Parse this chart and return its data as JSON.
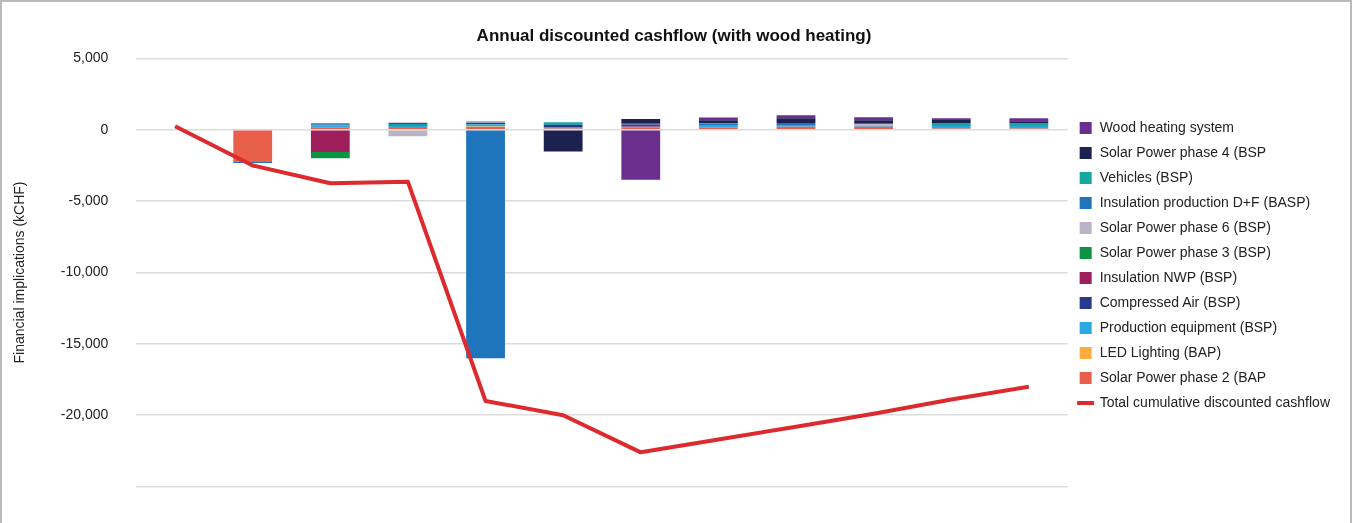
{
  "chart_data": {
    "type": "bar",
    "stacked": true,
    "title": "Annual discounted cashflow (with wood heating)",
    "ylabel": "Financial implications (kCHF)",
    "categories": [
      null,
      null,
      null,
      null,
      null,
      null,
      null,
      null,
      null,
      null,
      null,
      null
    ],
    "ylim": [
      -25000,
      5000
    ],
    "yticks": [
      {
        "value": -25000,
        "label": null
      },
      {
        "value": -20000,
        "label": "-20,000"
      },
      {
        "value": -15000,
        "label": "-15,000"
      },
      {
        "value": -10000,
        "label": "-10,000"
      },
      {
        "value": -5000,
        "label": "-5,000"
      },
      0,
      {
        "value": 5000,
        "label": "5,000"
      }
    ],
    "grid": "y",
    "legend": "right",
    "tick_labels": "y",
    "series": [
      {
        "name": "Solar Power phase 2 (BAP",
        "color": "#e8604a",
        "values": [
          null,
          -2200,
          150,
          130,
          200,
          90,
          150,
          150,
          220,
          220,
          90,
          90
        ]
      },
      {
        "name": "LED Lighting (BAP)",
        "color": "#fbad3f",
        "values": [
          null,
          null,
          null,
          null,
          30,
          null,
          null,
          null,
          null,
          null,
          null,
          null
        ]
      },
      {
        "name": "Production equipment (BSP)",
        "color": "#29a9e0",
        "values": [
          null,
          null,
          150,
          150,
          150,
          110,
          60,
          130,
          60,
          60,
          180,
          180
        ]
      },
      {
        "name": "Compressed Air (BSP)",
        "color": "#283a8c",
        "values": [
          null,
          null,
          null,
          60,
          110,
          150,
          null,
          null,
          null,
          null,
          null,
          null
        ]
      },
      {
        "name": "Insulation NWP (BSP)",
        "color": "#9f1e5c",
        "values": [
          null,
          null,
          -1550,
          null,
          null,
          null,
          150,
          null,
          null,
          null,
          null,
          null
        ]
      },
      {
        "name": "Solar Power phase 3 (BSP)",
        "color": "#0b9444",
        "values": [
          null,
          null,
          -440,
          null,
          null,
          null,
          null,
          60,
          null,
          null,
          null,
          null
        ]
      },
      {
        "name": "Solar Power phase 6 (BSP)",
        "color": "#b9b3c3",
        "values": [
          null,
          null,
          null,
          -460,
          130,
          null,
          null,
          null,
          null,
          130,
          null,
          null
        ]
      },
      {
        "name": "Insulation production D+F (BASP)",
        "color": "#1f75bb",
        "values": [
          null,
          -130,
          80,
          null,
          -16000,
          null,
          60,
          60,
          200,
          60,
          null,
          null
        ]
      },
      {
        "name": "Vehicles (BSP)",
        "color": "#13a89e",
        "values": [
          null,
          null,
          null,
          60,
          null,
          170,
          null,
          60,
          null,
          null,
          200,
          200
        ]
      },
      {
        "name": "Solar Power phase 4 (BSP",
        "color": "#1c2150",
        "values": [
          null,
          null,
          60,
          null,
          null,
          -1520,
          330,
          200,
          330,
          200,
          260,
          130
        ]
      },
      {
        "name": "Wood heating system",
        "color": "#6a2f8e",
        "values": [
          null,
          null,
          null,
          100,
          null,
          null,
          -3500,
          200,
          200,
          200,
          70,
          200
        ]
      },
      {
        "name": "Total cumulative discounted cashflow",
        "type": "line",
        "color": "#dc2a2e",
        "values": [
          250,
          -2500,
          -3750,
          -3650,
          -19000,
          -20000,
          -22600,
          -21700,
          -20800,
          -19900,
          -18900,
          -18000
        ]
      }
    ]
  }
}
